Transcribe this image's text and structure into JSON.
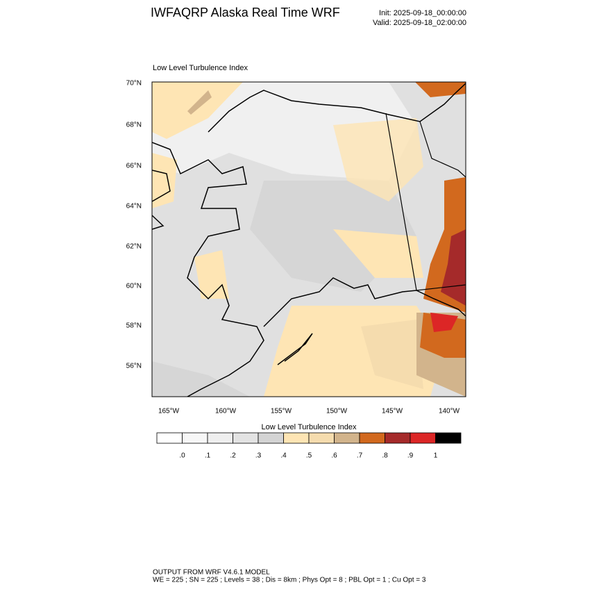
{
  "header": {
    "title": "IWFAQRP Alaska Real Time WRF",
    "init": "Init: 2025-09-18_00:00:00",
    "valid": "Valid: 2025-09-18_02:00:00"
  },
  "map": {
    "subtitle": "Low Level Turbulence Index",
    "lat_labels": [
      "70°N",
      "68°N",
      "66°N",
      "64°N",
      "62°N",
      "60°N",
      "58°N",
      "56°N"
    ],
    "lon_labels": [
      "165°W",
      "160°W",
      "155°W",
      "150°W",
      "145°W",
      "140°W"
    ]
  },
  "colorbar": {
    "title": "Low Level Turbulence Index",
    "colors": [
      "#ffffff",
      "#f7f7f7",
      "#efefef",
      "#e3e3e3",
      "#d4d4d4",
      "#fee5b4",
      "#f5dcae",
      "#d2b48c",
      "#d2691e",
      "#a52a2a",
      "#dc2626",
      "#000000"
    ],
    "labels": [
      ".0",
      ".1",
      ".2",
      ".3",
      ".4",
      ".5",
      ".6",
      ".7",
      ".8",
      ".9",
      "1"
    ]
  },
  "footer": {
    "line1": "OUTPUT FROM WRF V4.6.1 MODEL",
    "line2": "WE = 225 ; SN = 225 ; Levels = 38 ; Dis = 8km ; Phys Opt = 8 ; PBL Opt = 1 ; Cu Opt = 3"
  }
}
